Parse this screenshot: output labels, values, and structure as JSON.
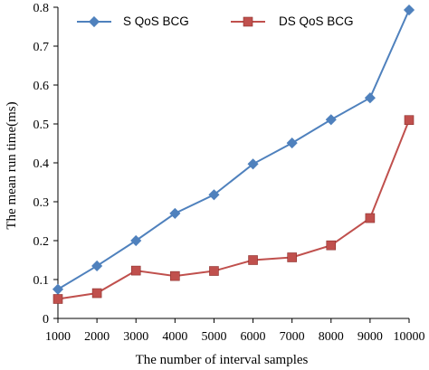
{
  "chart_data": {
    "type": "line",
    "title": "",
    "xlabel": "The number of interval samples",
    "ylabel": "The mean run time(ms)",
    "x": [
      1000,
      2000,
      3000,
      4000,
      5000,
      6000,
      7000,
      8000,
      9000,
      10000
    ],
    "ylim": [
      0,
      0.8
    ],
    "yticks": [
      0,
      0.1,
      0.2,
      0.3,
      0.4,
      0.5,
      0.6,
      0.7,
      0.8
    ],
    "yticklabels": [
      "0",
      "0.1",
      "0.2",
      "0.3",
      "0.4",
      "0.5",
      "0.6",
      "0.7",
      "0.8"
    ],
    "grid": false,
    "legend_position": "top-left",
    "series": [
      {
        "name": "S  QoS  BCG",
        "marker": "diamond",
        "color": "#4f81bd",
        "values": [
          0.075,
          0.135,
          0.2,
          0.27,
          0.318,
          0.397,
          0.451,
          0.511,
          0.567,
          0.793
        ]
      },
      {
        "name": "DS  QoS  BCG",
        "marker": "square",
        "color": "#c0504d",
        "values": [
          0.05,
          0.065,
          0.123,
          0.109,
          0.122,
          0.15,
          0.157,
          0.188,
          0.258,
          0.51
        ]
      }
    ]
  }
}
